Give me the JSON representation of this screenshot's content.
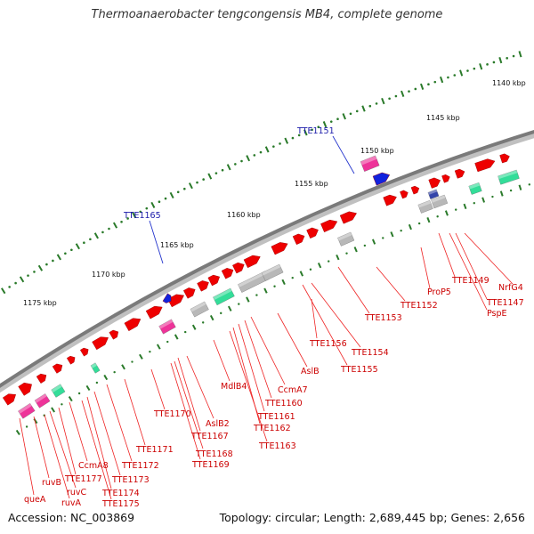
{
  "header": {
    "title": "Thermoanaerobacter tengcongensis MB4, complete genome"
  },
  "footer": {
    "accession": "Accession: NC_003869",
    "summary": "Topology: circular; Length: 2,689,445 bp; Genes: 2,656"
  },
  "colors": {
    "backbone": "#8a8a8a",
    "ruler": "#2a7a2a",
    "gene_forward": "#ee0000",
    "gene_label": "#cc0000",
    "highlight_label": "#1a1aaa",
    "pink": "#ee3399",
    "green": "#33dd99",
    "gray": "#b8b8b8",
    "blue": "#1122dd"
  },
  "ruler_labels": [
    "1140 kbp",
    "1145 kbp",
    "1150 kbp",
    "1155 kbp",
    "1160 kbp",
    "1165 kbp",
    "1170 kbp",
    "1175 kbp"
  ],
  "highlight_labels": [
    "TTE1151",
    "TTE1165"
  ],
  "gene_labels": [
    "NrfG4",
    "TTE1147",
    "PspE",
    "TTE1149",
    "ProP5",
    "TTE1152",
    "TTE1153",
    "TTE1154",
    "TTE1155",
    "TTE1156",
    "AslB",
    "CcmA7",
    "TTE1160",
    "TTE1161",
    "TTE1162",
    "TTE1163",
    "MdlB4",
    "AslB2",
    "TTE1167",
    "TTE1168",
    "TTE1169",
    "TTE1170",
    "TTE1171",
    "TTE1172",
    "TTE1173",
    "TTE1174",
    "TTE1175",
    "CcmA8",
    "TTE1177",
    "ruvC",
    "ruvA",
    "ruvB",
    "queA"
  ]
}
